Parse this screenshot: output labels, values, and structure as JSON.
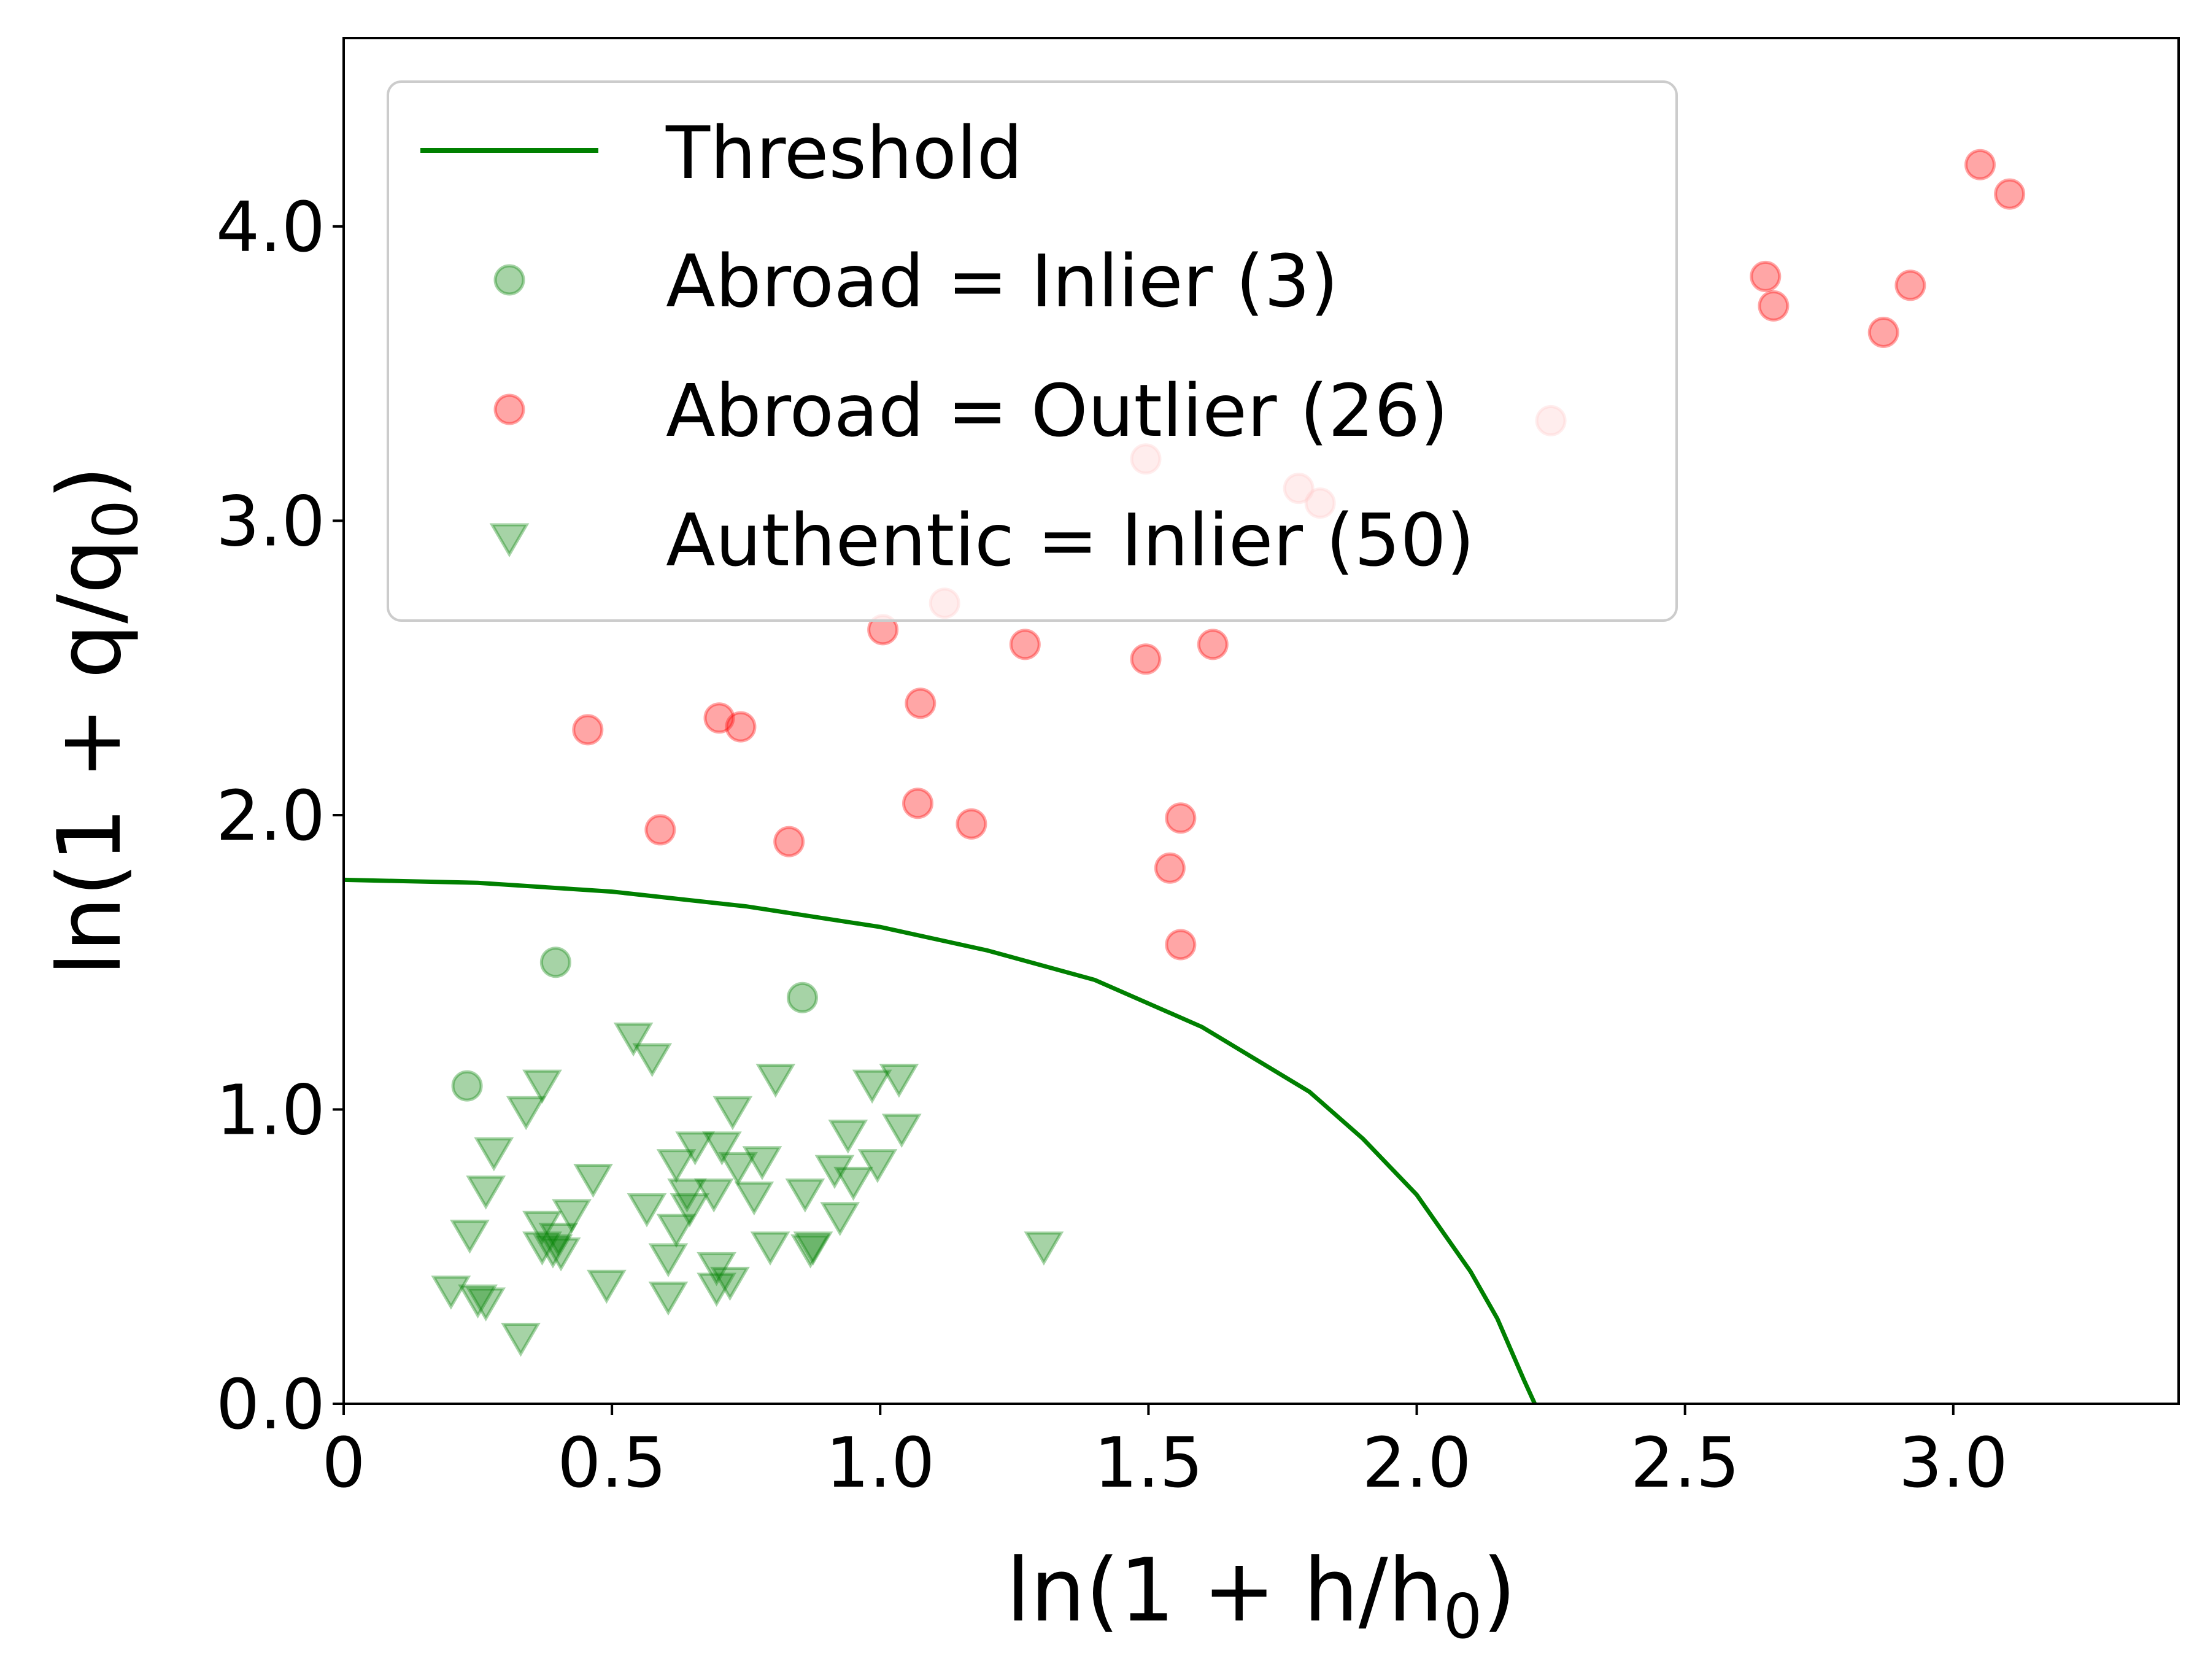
{
  "chart_data": {
    "type": "scatter",
    "xlabel": {
      "main": "ln(1 + h/h",
      "sub": "0",
      "end": ")"
    },
    "ylabel": {
      "main": "ln(1 + q/q",
      "sub": "0",
      "end": ")"
    },
    "xlim": [
      0,
      3.42
    ],
    "ylim": [
      0,
      4.64
    ],
    "x_ticks": [
      {
        "v": 0,
        "label": "0"
      },
      {
        "v": 0.5,
        "label": "0.5"
      },
      {
        "v": 1.0,
        "label": "1.0"
      },
      {
        "v": 1.5,
        "label": "1.5"
      },
      {
        "v": 2.0,
        "label": "2.0"
      },
      {
        "v": 2.5,
        "label": "2.5"
      },
      {
        "v": 3.0,
        "label": "3.0"
      }
    ],
    "y_ticks": [
      {
        "v": 0,
        "label": "0.0"
      },
      {
        "v": 1,
        "label": "1.0"
      },
      {
        "v": 2,
        "label": "2.0"
      },
      {
        "v": 3,
        "label": "3.0"
      },
      {
        "v": 4,
        "label": "4.0"
      }
    ],
    "grid": false,
    "legend_position": "top-left",
    "colors": {
      "green": "#008000",
      "red": "#ff0000",
      "line": "#008000"
    },
    "threshold": {
      "name": "Threshold",
      "curve": [
        [
          0,
          1.78
        ],
        [
          0.25,
          1.77
        ],
        [
          0.5,
          1.74
        ],
        [
          0.75,
          1.69
        ],
        [
          1.0,
          1.62
        ],
        [
          1.2,
          1.54
        ],
        [
          1.4,
          1.44
        ],
        [
          1.6,
          1.28
        ],
        [
          1.8,
          1.06
        ],
        [
          1.9,
          0.9
        ],
        [
          2.0,
          0.71
        ],
        [
          2.1,
          0.45
        ],
        [
          2.15,
          0.29
        ],
        [
          2.2,
          0.08
        ],
        [
          2.22,
          0.0
        ]
      ]
    },
    "series": [
      {
        "name": "Abroad = Inlier (3)",
        "marker": "circle",
        "points": [
          [
            0.23,
            1.08
          ],
          [
            0.395,
            1.5
          ],
          [
            0.855,
            1.38
          ]
        ]
      },
      {
        "name": "Abroad = Outlier (26)",
        "marker": "circle",
        "points": [
          [
            3.05,
            4.21
          ],
          [
            3.105,
            4.11
          ],
          [
            2.65,
            3.83
          ],
          [
            2.665,
            3.73
          ],
          [
            2.92,
            3.8
          ],
          [
            2.87,
            3.64
          ],
          [
            2.25,
            3.34
          ],
          [
            1.495,
            3.21
          ],
          [
            1.78,
            3.11
          ],
          [
            1.82,
            3.06
          ],
          [
            1.12,
            2.72
          ],
          [
            1.005,
            2.63
          ],
          [
            1.27,
            2.58
          ],
          [
            1.62,
            2.58
          ],
          [
            1.495,
            2.53
          ],
          [
            1.075,
            2.38
          ],
          [
            0.7,
            2.33
          ],
          [
            0.74,
            2.3
          ],
          [
            0.455,
            2.29
          ],
          [
            0.59,
            1.95
          ],
          [
            0.83,
            1.91
          ],
          [
            1.07,
            2.04
          ],
          [
            1.17,
            1.97
          ],
          [
            1.56,
            1.99
          ],
          [
            1.54,
            1.82
          ],
          [
            1.56,
            1.56
          ]
        ]
      },
      {
        "name": "Authentic = Inlier (50)",
        "marker": "triangle-down",
        "points": [
          [
            0.54,
            1.24
          ],
          [
            0.575,
            1.17
          ],
          [
            0.37,
            1.08
          ],
          [
            0.34,
            0.99
          ],
          [
            0.805,
            1.1
          ],
          [
            1.035,
            1.1
          ],
          [
            0.985,
            1.08
          ],
          [
            0.725,
            0.99
          ],
          [
            1.04,
            0.93
          ],
          [
            0.94,
            0.91
          ],
          [
            0.28,
            0.85
          ],
          [
            0.655,
            0.87
          ],
          [
            0.705,
            0.87
          ],
          [
            0.62,
            0.81
          ],
          [
            0.78,
            0.82
          ],
          [
            0.265,
            0.72
          ],
          [
            0.465,
            0.76
          ],
          [
            0.735,
            0.8
          ],
          [
            0.995,
            0.81
          ],
          [
            0.915,
            0.79
          ],
          [
            0.95,
            0.75
          ],
          [
            0.69,
            0.71
          ],
          [
            0.64,
            0.71
          ],
          [
            0.86,
            0.71
          ],
          [
            0.765,
            0.7
          ],
          [
            0.565,
            0.66
          ],
          [
            0.425,
            0.64
          ],
          [
            0.645,
            0.66
          ],
          [
            0.925,
            0.63
          ],
          [
            0.62,
            0.59
          ],
          [
            0.37,
            0.6
          ],
          [
            0.235,
            0.57
          ],
          [
            0.4,
            0.56
          ],
          [
            0.37,
            0.53
          ],
          [
            0.39,
            0.52
          ],
          [
            0.405,
            0.51
          ],
          [
            0.795,
            0.53
          ],
          [
            0.875,
            0.53
          ],
          [
            0.87,
            0.52
          ],
          [
            1.305,
            0.53
          ],
          [
            0.605,
            0.49
          ],
          [
            0.695,
            0.46
          ],
          [
            0.49,
            0.4
          ],
          [
            0.695,
            0.39
          ],
          [
            0.72,
            0.41
          ],
          [
            0.2,
            0.38
          ],
          [
            0.605,
            0.36
          ],
          [
            0.25,
            0.35
          ],
          [
            0.265,
            0.34
          ],
          [
            0.33,
            0.22
          ]
        ]
      }
    ]
  }
}
